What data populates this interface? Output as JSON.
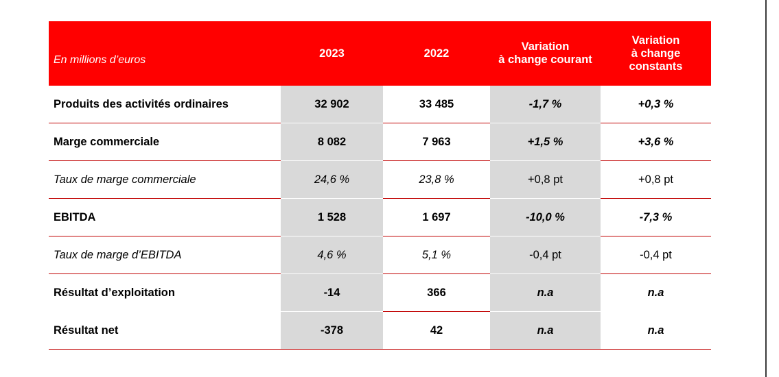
{
  "table": {
    "caption": "En millions d’euros",
    "headers": [
      "2023",
      "2022",
      "Variation\nà change courant",
      "Variation\nà change\nconstants"
    ],
    "rows": [
      {
        "label": "Produits des activités ordinaires",
        "v2023": "32 902",
        "v2022": "33 485",
        "var_courant": "-1,7 %",
        "var_constant": "+0,3 %"
      },
      {
        "label": "Marge commerciale",
        "v2023": "8 082",
        "v2022": "7 963",
        "var_courant": "+1,5 %",
        "var_constant": "+3,6 %"
      },
      {
        "label": "Taux de marge commerciale",
        "v2023": "24,6 %",
        "v2022": "23,8 %",
        "var_courant": "+0,8 pt",
        "var_constant": "+0,8 pt"
      },
      {
        "label": "EBITDA",
        "v2023": "1 528",
        "v2022": "1 697",
        "var_courant": "-10,0 %",
        "var_constant": "-7,3 %"
      },
      {
        "label": "Taux de marge d’EBITDA",
        "v2023": "4,6 %",
        "v2022": "5,1 %",
        "var_courant": "-0,4 pt",
        "var_constant": "-0,4 pt"
      },
      {
        "label": "Résultat d’exploitation",
        "v2023": "-14",
        "v2022": "366",
        "var_courant": "n.a",
        "var_constant": "n.a"
      },
      {
        "label": "Résultat net",
        "v2023": "-378",
        "v2022": "42",
        "var_courant": "n.a",
        "var_constant": "n.a"
      }
    ]
  },
  "colors": {
    "header_bg": "#ff0000",
    "shade": "#d9d9d9",
    "rule": "#c00000"
  }
}
